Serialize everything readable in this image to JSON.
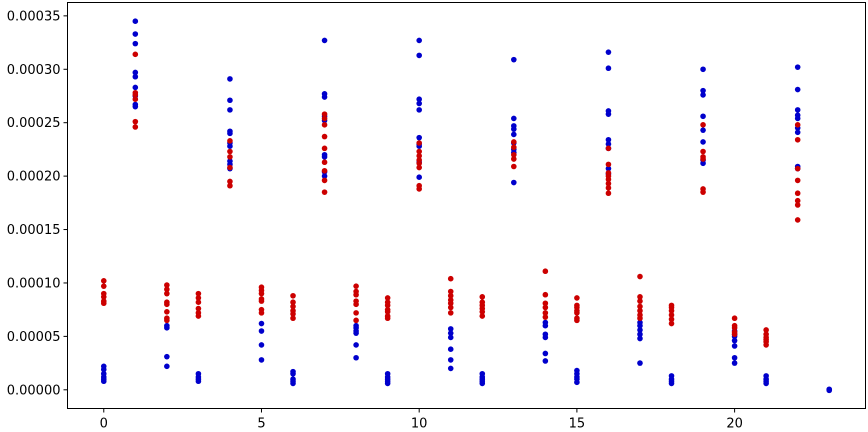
{
  "chart_data": {
    "type": "scatter",
    "title": "",
    "xlabel": "",
    "ylabel": "",
    "xlim": [
      -1.15,
      24.15
    ],
    "ylim": [
      -1.75e-05,
      0.0003625
    ],
    "grid": false,
    "x_ticks": [
      0,
      5,
      10,
      15,
      20
    ],
    "x_tick_labels": [
      "0",
      "5",
      "10",
      "15",
      "20"
    ],
    "y_ticks": [
      0,
      5e-05,
      0.0001,
      0.00015,
      0.0002,
      0.00025,
      0.0003,
      0.00035
    ],
    "y_tick_labels": [
      "0.00000",
      "0.00005",
      "0.00010",
      "0.00015",
      "0.00020",
      "0.00025",
      "0.00030",
      "0.00035"
    ],
    "series": [
      {
        "color": "#0000cc",
        "points": [
          [
            0,
            2.2e-05
          ],
          [
            0,
            1.9e-05
          ],
          [
            0,
            1.5e-05
          ],
          [
            0,
            1.2e-05
          ],
          [
            0,
            1e-05
          ],
          [
            0,
            8e-06
          ],
          [
            1,
            0.000345
          ],
          [
            1,
            0.000333
          ],
          [
            1,
            0.000324
          ],
          [
            1,
            0.000297
          ],
          [
            1,
            0.000293
          ],
          [
            1,
            0.000283
          ],
          [
            1,
            0.000275
          ],
          [
            1,
            0.000267
          ],
          [
            1,
            0.000265
          ],
          [
            2,
            6e-05
          ],
          [
            2,
            5.8e-05
          ],
          [
            2,
            3.1e-05
          ],
          [
            2,
            2.2e-05
          ],
          [
            3,
            1.5e-05
          ],
          [
            3,
            1.2e-05
          ],
          [
            3,
            1e-05
          ],
          [
            3,
            8e-06
          ],
          [
            4,
            0.000291
          ],
          [
            4,
            0.000271
          ],
          [
            4,
            0.000262
          ],
          [
            4,
            0.000242
          ],
          [
            4,
            0.00024
          ],
          [
            4,
            0.000231
          ],
          [
            4,
            0.000228
          ],
          [
            4,
            0.000214
          ],
          [
            4,
            0.000211
          ],
          [
            4,
            0.000207
          ],
          [
            5,
            6.2e-05
          ],
          [
            5,
            5.5e-05
          ],
          [
            5,
            4.2e-05
          ],
          [
            5,
            2.8e-05
          ],
          [
            6,
            1.7e-05
          ],
          [
            6,
            1.5e-05
          ],
          [
            6,
            1e-05
          ],
          [
            6,
            8e-06
          ],
          [
            6,
            6e-06
          ],
          [
            7,
            0.000327
          ],
          [
            7,
            0.000277
          ],
          [
            7,
            0.000274
          ],
          [
            7,
            0.000256
          ],
          [
            7,
            0.000252
          ],
          [
            7,
            0.00022
          ],
          [
            7,
            0.000218
          ],
          [
            7,
            0.000204
          ],
          [
            7,
            0.0002
          ],
          [
            8,
            6e-05
          ],
          [
            8,
            5.8e-05
          ],
          [
            8,
            5.5e-05
          ],
          [
            8,
            5.3e-05
          ],
          [
            8,
            4.2e-05
          ],
          [
            8,
            3e-05
          ],
          [
            9,
            1.5e-05
          ],
          [
            9,
            1.2e-05
          ],
          [
            9,
            1e-05
          ],
          [
            9,
            8e-06
          ],
          [
            9,
            6e-06
          ],
          [
            10,
            0.000327
          ],
          [
            10,
            0.000313
          ],
          [
            10,
            0.000272
          ],
          [
            10,
            0.000268
          ],
          [
            10,
            0.000262
          ],
          [
            10,
            0.000236
          ],
          [
            10,
            0.00023
          ],
          [
            10,
            0.000228
          ],
          [
            10,
            0.000213
          ],
          [
            10,
            0.000199
          ],
          [
            11,
            5.7e-05
          ],
          [
            11,
            5.3e-05
          ],
          [
            11,
            4.9e-05
          ],
          [
            11,
            3.8e-05
          ],
          [
            11,
            2.8e-05
          ],
          [
            11,
            2e-05
          ],
          [
            12,
            1.5e-05
          ],
          [
            12,
            1.2e-05
          ],
          [
            12,
            1e-05
          ],
          [
            12,
            8e-06
          ],
          [
            12,
            6e-06
          ],
          [
            13,
            0.000309
          ],
          [
            13,
            0.000254
          ],
          [
            13,
            0.000247
          ],
          [
            13,
            0.000244
          ],
          [
            13,
            0.000239
          ],
          [
            13,
            0.000231
          ],
          [
            13,
            0.000225
          ],
          [
            13,
            0.000222
          ],
          [
            13,
            0.000194
          ],
          [
            14,
            6.3e-05
          ],
          [
            14,
            6e-05
          ],
          [
            14,
            5.2e-05
          ],
          [
            14,
            4.9e-05
          ],
          [
            14,
            3.4e-05
          ],
          [
            14,
            2.7e-05
          ],
          [
            15,
            1.8e-05
          ],
          [
            15,
            1.5e-05
          ],
          [
            15,
            1.2e-05
          ],
          [
            15,
            1e-05
          ],
          [
            15,
            7e-06
          ],
          [
            16,
            0.000316
          ],
          [
            16,
            0.000301
          ],
          [
            16,
            0.000261
          ],
          [
            16,
            0.000258
          ],
          [
            16,
            0.000234
          ],
          [
            16,
            0.00023
          ],
          [
            16,
            0.000226
          ],
          [
            16,
            0.000207
          ],
          [
            16,
            0.000202
          ],
          [
            17,
            6.3e-05
          ],
          [
            17,
            6e-05
          ],
          [
            17,
            5.6e-05
          ],
          [
            17,
            5.2e-05
          ],
          [
            17,
            4.8e-05
          ],
          [
            17,
            2.5e-05
          ],
          [
            18,
            1.3e-05
          ],
          [
            18,
            1e-05
          ],
          [
            18,
            8e-06
          ],
          [
            18,
            6e-06
          ],
          [
            19,
            0.0003
          ],
          [
            19,
            0.00028
          ],
          [
            19,
            0.000276
          ],
          [
            19,
            0.000256
          ],
          [
            19,
            0.000243
          ],
          [
            19,
            0.000232
          ],
          [
            19,
            0.000215
          ],
          [
            19,
            0.000212
          ],
          [
            20,
            5.5e-05
          ],
          [
            20,
            5.2e-05
          ],
          [
            20,
            5e-05
          ],
          [
            20,
            4.6e-05
          ],
          [
            20,
            4.1e-05
          ],
          [
            20,
            3e-05
          ],
          [
            20,
            2.5e-05
          ],
          [
            21,
            1.3e-05
          ],
          [
            21,
            1e-05
          ],
          [
            21,
            8e-06
          ],
          [
            21,
            6e-06
          ],
          [
            22,
            0.000302
          ],
          [
            22,
            0.000281
          ],
          [
            22,
            0.000262
          ],
          [
            22,
            0.000257
          ],
          [
            22,
            0.000254
          ],
          [
            22,
            0.000245
          ],
          [
            22,
            0.000241
          ],
          [
            22,
            0.000209
          ],
          [
            22,
            0.000207
          ],
          [
            23,
            5e-07
          ],
          [
            23,
            0.0
          ],
          [
            23,
            -5e-07
          ]
        ]
      },
      {
        "color": "#cc0000",
        "points": [
          [
            0,
            0.000102
          ],
          [
            0,
            9.7e-05
          ],
          [
            0,
            9e-05
          ],
          [
            0,
            8.7e-05
          ],
          [
            0,
            8.3e-05
          ],
          [
            0,
            8.1e-05
          ],
          [
            1,
            0.000314
          ],
          [
            1,
            0.000278
          ],
          [
            1,
            0.000276
          ],
          [
            1,
            0.000272
          ],
          [
            1,
            0.000251
          ],
          [
            1,
            0.000246
          ],
          [
            2,
            9.8e-05
          ],
          [
            2,
            9.4e-05
          ],
          [
            2,
            9e-05
          ],
          [
            2,
            8.2e-05
          ],
          [
            2,
            8e-05
          ],
          [
            2,
            7.3e-05
          ],
          [
            2,
            6.7e-05
          ],
          [
            2,
            6.5e-05
          ],
          [
            3,
            9e-05
          ],
          [
            3,
            8.6e-05
          ],
          [
            3,
            8.2e-05
          ],
          [
            3,
            7.6e-05
          ],
          [
            3,
            7.2e-05
          ],
          [
            3,
            6.9e-05
          ],
          [
            4,
            0.000233
          ],
          [
            4,
            0.000223
          ],
          [
            4,
            0.000218
          ],
          [
            4,
            0.000208
          ],
          [
            4,
            0.000195
          ],
          [
            4,
            0.000191
          ],
          [
            5,
            9.6e-05
          ],
          [
            5,
            9.3e-05
          ],
          [
            5,
            9e-05
          ],
          [
            5,
            8.5e-05
          ],
          [
            5,
            8.3e-05
          ],
          [
            5,
            7.5e-05
          ],
          [
            5,
            7.2e-05
          ],
          [
            6,
            8.8e-05
          ],
          [
            6,
            8.2e-05
          ],
          [
            6,
            7.8e-05
          ],
          [
            6,
            7.4e-05
          ],
          [
            6,
            7.1e-05
          ],
          [
            6,
            6.7e-05
          ],
          [
            7,
            0.000258
          ],
          [
            7,
            0.000254
          ],
          [
            7,
            0.000248
          ],
          [
            7,
            0.000237
          ],
          [
            7,
            0.000226
          ],
          [
            7,
            0.000213
          ],
          [
            7,
            0.000205
          ],
          [
            7,
            0.000196
          ],
          [
            7,
            0.000185
          ],
          [
            8,
            9.7e-05
          ],
          [
            8,
            9.2e-05
          ],
          [
            8,
            8.9e-05
          ],
          [
            8,
            8.3e-05
          ],
          [
            8,
            8e-05
          ],
          [
            8,
            7.2e-05
          ],
          [
            8,
            6.5e-05
          ],
          [
            9,
            8.6e-05
          ],
          [
            9,
            8.2e-05
          ],
          [
            9,
            7.9e-05
          ],
          [
            9,
            7.5e-05
          ],
          [
            9,
            7.3e-05
          ],
          [
            9,
            6.9e-05
          ],
          [
            9,
            6.7e-05
          ],
          [
            10,
            0.000231
          ],
          [
            10,
            0.000223
          ],
          [
            10,
            0.000219
          ],
          [
            10,
            0.000215
          ],
          [
            10,
            0.000212
          ],
          [
            10,
            0.000208
          ],
          [
            10,
            0.000191
          ],
          [
            10,
            0.000188
          ],
          [
            11,
            0.000104
          ],
          [
            11,
            9.2e-05
          ],
          [
            11,
            8.8e-05
          ],
          [
            11,
            8.4e-05
          ],
          [
            11,
            8.1e-05
          ],
          [
            11,
            7.7e-05
          ],
          [
            11,
            7.2e-05
          ],
          [
            12,
            8.7e-05
          ],
          [
            12,
            8.2e-05
          ],
          [
            12,
            7.9e-05
          ],
          [
            12,
            7.6e-05
          ],
          [
            12,
            7.3e-05
          ],
          [
            12,
            6.9e-05
          ],
          [
            13,
            0.000232
          ],
          [
            13,
            0.000227
          ],
          [
            13,
            0.00022
          ],
          [
            13,
            0.000216
          ],
          [
            13,
            0.000209
          ],
          [
            14,
            0.000111
          ],
          [
            14,
            8.9e-05
          ],
          [
            14,
            8.1e-05
          ],
          [
            14,
            7.7e-05
          ],
          [
            14,
            7.2e-05
          ],
          [
            14,
            6.8e-05
          ],
          [
            15,
            8.6e-05
          ],
          [
            15,
            7.9e-05
          ],
          [
            15,
            7.7e-05
          ],
          [
            15,
            7.4e-05
          ],
          [
            15,
            7.2e-05
          ],
          [
            15,
            6.7e-05
          ],
          [
            15,
            6.5e-05
          ],
          [
            16,
            0.000226
          ],
          [
            16,
            0.000211
          ],
          [
            16,
            0.000203
          ],
          [
            16,
            0.0002
          ],
          [
            16,
            0.000197
          ],
          [
            16,
            0.000193
          ],
          [
            16,
            0.000189
          ],
          [
            16,
            0.000184
          ],
          [
            17,
            0.000106
          ],
          [
            17,
            8.7e-05
          ],
          [
            17,
            8.3e-05
          ],
          [
            17,
            7.8e-05
          ],
          [
            17,
            7.4e-05
          ],
          [
            17,
            7e-05
          ],
          [
            17,
            6.7e-05
          ],
          [
            18,
            7.9e-05
          ],
          [
            18,
            7.7e-05
          ],
          [
            18,
            7.4e-05
          ],
          [
            18,
            7e-05
          ],
          [
            18,
            6.6e-05
          ],
          [
            18,
            6.2e-05
          ],
          [
            19,
            0.000248
          ],
          [
            19,
            0.000223
          ],
          [
            19,
            0.000218
          ],
          [
            19,
            0.000216
          ],
          [
            19,
            0.000188
          ],
          [
            19,
            0.000185
          ],
          [
            20,
            6.7e-05
          ],
          [
            20,
            6e-05
          ],
          [
            20,
            5.8e-05
          ],
          [
            20,
            5.4e-05
          ],
          [
            20,
            5.2e-05
          ],
          [
            21,
            5.6e-05
          ],
          [
            21,
            5.2e-05
          ],
          [
            21,
            4.9e-05
          ],
          [
            21,
            4.7e-05
          ],
          [
            21,
            4.5e-05
          ],
          [
            21,
            4.2e-05
          ],
          [
            22,
            0.000248
          ],
          [
            22,
            0.000234
          ],
          [
            22,
            0.000207
          ],
          [
            22,
            0.000196
          ],
          [
            22,
            0.000184
          ],
          [
            22,
            0.000177
          ],
          [
            22,
            0.000173
          ],
          [
            22,
            0.000159
          ]
        ]
      }
    ]
  }
}
